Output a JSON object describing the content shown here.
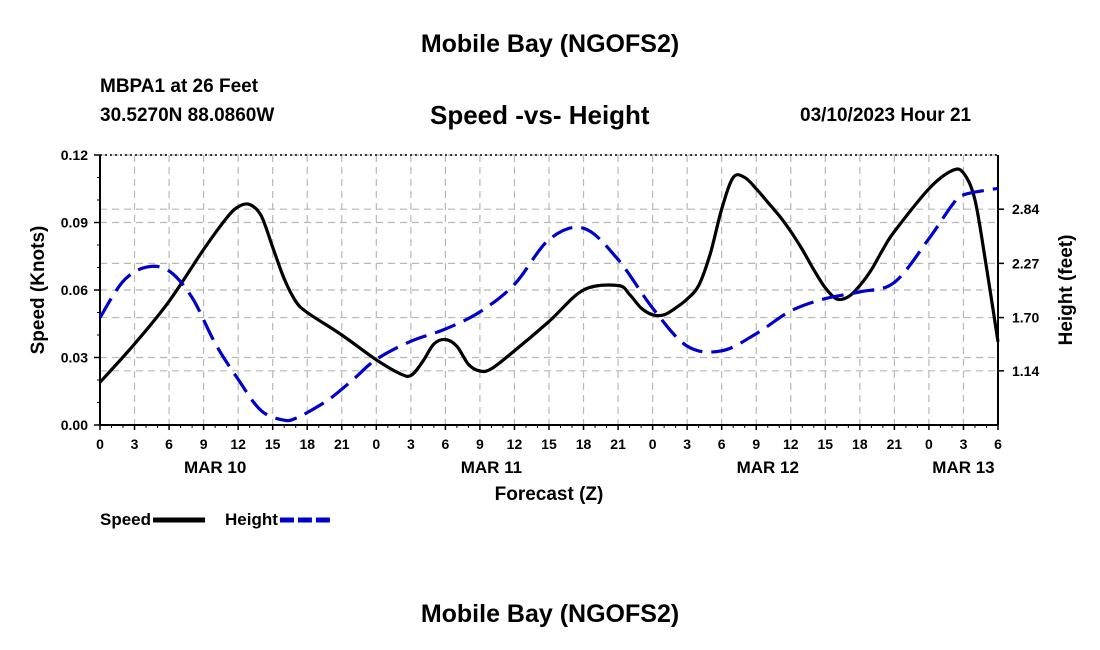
{
  "header": {
    "title": "Mobile Bay (NGOFS2)",
    "station": "MBPA1 at 26 Feet",
    "coords": "30.5270N  88.0860W",
    "date": "03/10/2023 Hour 21"
  },
  "footer": {
    "title": "Mobile Bay (NGOFS2)"
  },
  "chart_data": {
    "type": "line",
    "title": "Speed -vs- Height",
    "xlabel": "Forecast (Z)",
    "ylabel": "Speed (Knots)",
    "y2label": "Height (feet)",
    "x_unit": "forecast hour since MAR 10 00Z",
    "xlim": [
      0,
      78
    ],
    "x_tick_values": [
      0,
      3,
      6,
      9,
      12,
      15,
      18,
      21,
      24,
      27,
      30,
      33,
      36,
      39,
      42,
      45,
      48,
      51,
      54,
      57,
      60,
      63,
      66,
      69,
      72,
      75,
      78
    ],
    "x_tick_labels": [
      "0",
      "3",
      "6",
      "9",
      "12",
      "15",
      "18",
      "21",
      "0",
      "3",
      "6",
      "9",
      "12",
      "15",
      "18",
      "21",
      "0",
      "3",
      "6",
      "9",
      "12",
      "15",
      "18",
      "21",
      "0",
      "3",
      "6"
    ],
    "day_labels": [
      {
        "label": "MAR 10",
        "at": 10
      },
      {
        "label": "MAR 11",
        "at": 34
      },
      {
        "label": "MAR 12",
        "at": 58
      },
      {
        "label": "MAR 13",
        "at": 75
      }
    ],
    "ylim": [
      0,
      0.12
    ],
    "y_ticks": [
      "0.00",
      "0.03",
      "0.06",
      "0.09",
      "0.12"
    ],
    "y2lim": [
      0.57,
      3.41
    ],
    "y2_ticks": [
      "1.14",
      "1.70",
      "2.27",
      "2.84"
    ],
    "grid": true,
    "legend_position": "bottom-left",
    "series": [
      {
        "name": "Speed",
        "axis": "left",
        "color": "#000000",
        "dash": "solid",
        "x": [
          0,
          3,
          6,
          9,
          11,
          12,
          13,
          14,
          15,
          16,
          17,
          18,
          21,
          24,
          26,
          27,
          28,
          29,
          30,
          31,
          32,
          33,
          34,
          36,
          39,
          42,
          45,
          46,
          47,
          48,
          49,
          50,
          51,
          52,
          53,
          54,
          55,
          56,
          57,
          58,
          59,
          60,
          61,
          62,
          63,
          64,
          65,
          66,
          67,
          68,
          69,
          72,
          74,
          75,
          76,
          77,
          78
        ],
        "values": [
          0.019,
          0.036,
          0.055,
          0.078,
          0.092,
          0.097,
          0.098,
          0.093,
          0.079,
          0.065,
          0.055,
          0.05,
          0.04,
          0.029,
          0.023,
          0.022,
          0.028,
          0.036,
          0.038,
          0.035,
          0.027,
          0.024,
          0.025,
          0.033,
          0.046,
          0.06,
          0.062,
          0.058,
          0.052,
          0.049,
          0.049,
          0.052,
          0.056,
          0.062,
          0.076,
          0.096,
          0.11,
          0.11,
          0.105,
          0.099,
          0.093,
          0.086,
          0.078,
          0.069,
          0.061,
          0.056,
          0.057,
          0.062,
          0.069,
          0.078,
          0.086,
          0.105,
          0.113,
          0.112,
          0.1,
          0.07,
          0.037
        ]
      },
      {
        "name": "Height",
        "axis": "right",
        "color": "#0000cc",
        "dash": "dashed",
        "x": [
          0,
          2,
          4,
          6,
          8,
          10,
          12,
          14,
          16,
          17,
          18,
          20,
          22,
          24,
          27,
          30,
          33,
          36,
          39,
          42,
          45,
          48,
          51,
          54,
          57,
          60,
          63,
          66,
          69,
          72,
          74,
          75,
          78
        ],
        "values": [
          1.7,
          2.08,
          2.23,
          2.19,
          1.91,
          1.43,
          1.05,
          0.72,
          0.62,
          0.64,
          0.7,
          0.85,
          1.05,
          1.26,
          1.45,
          1.58,
          1.76,
          2.05,
          2.52,
          2.64,
          2.31,
          1.8,
          1.4,
          1.35,
          1.53,
          1.77,
          1.9,
          1.97,
          2.07,
          2.53,
          2.88,
          2.99,
          3.06
        ]
      }
    ]
  }
}
